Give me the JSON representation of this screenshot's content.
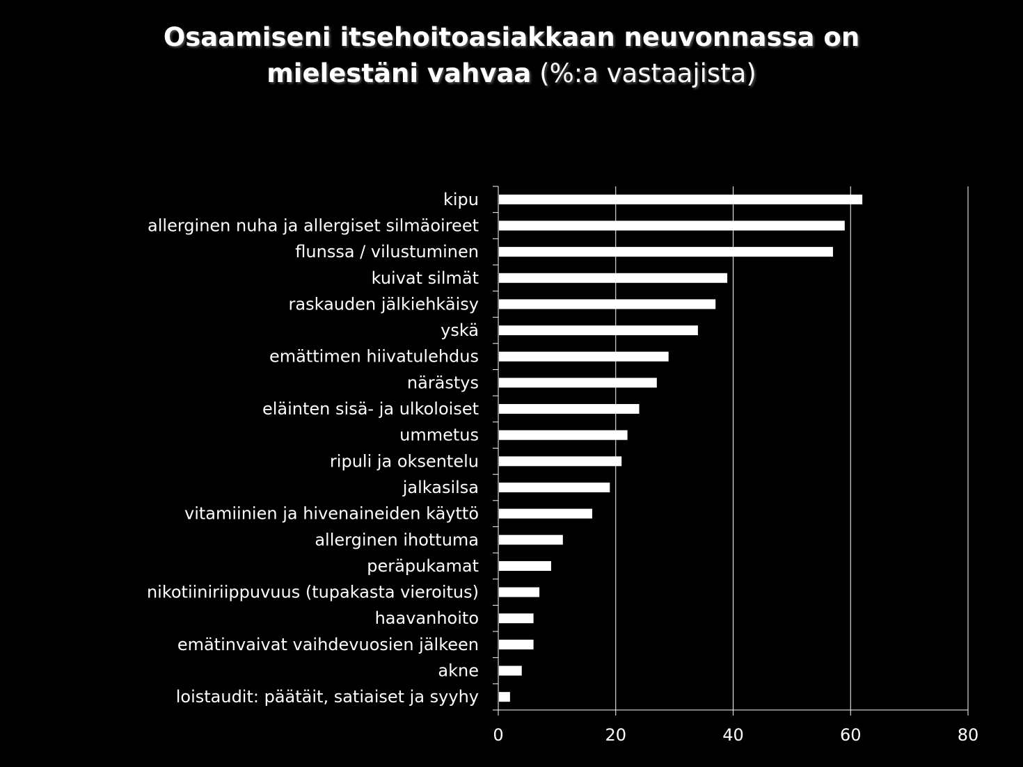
{
  "title": {
    "line1": "Osaamiseni itsehoitoasiakkaan neuvonnassa on",
    "line2_bold": "mielestäni vahvaa",
    "line2_normal": "(%:a vastaajista)"
  },
  "colors": {
    "background": "#000000",
    "bar": "#ffffff",
    "text": "#ffffff",
    "grid": "#ffffff"
  },
  "chart_data": {
    "type": "bar",
    "orientation": "horizontal",
    "title": "Osaamiseni itsehoitoasiakkaan neuvonnassa on mielestäni vahvaa (%:a vastaajista)",
    "xlabel": "",
    "ylabel": "",
    "xlim": [
      0,
      80
    ],
    "xticks": [
      0,
      20,
      40,
      60,
      80
    ],
    "grid": true,
    "legend": "none",
    "categories": [
      "kipu",
      "allerginen nuha ja allergiset silmäoireet",
      "flunssa / vilustuminen",
      "kuivat silmät",
      "raskauden jälkiehkäisy",
      "yskä",
      "emättimen hiivatulehdus",
      "närästys",
      "eläinten sisä- ja ulkoloiset",
      "ummetus",
      "ripuli ja oksentelu",
      "jalkasilsa",
      "vitamiinien ja hivenaineiden käyttö",
      "allerginen ihottuma",
      "peräpukamat",
      "nikotiiniriippuvuus (tupakasta vieroitus)",
      "haavanhoito",
      "emätinvaivat vaihdevuosien jälkeen",
      "akne",
      "loistaudit: päätäit, satiaiset ja syyhy"
    ],
    "values": [
      62,
      59,
      57,
      39,
      37,
      34,
      29,
      27,
      24,
      22,
      21,
      19,
      16,
      11,
      9,
      7,
      6,
      6,
      4,
      2
    ]
  }
}
